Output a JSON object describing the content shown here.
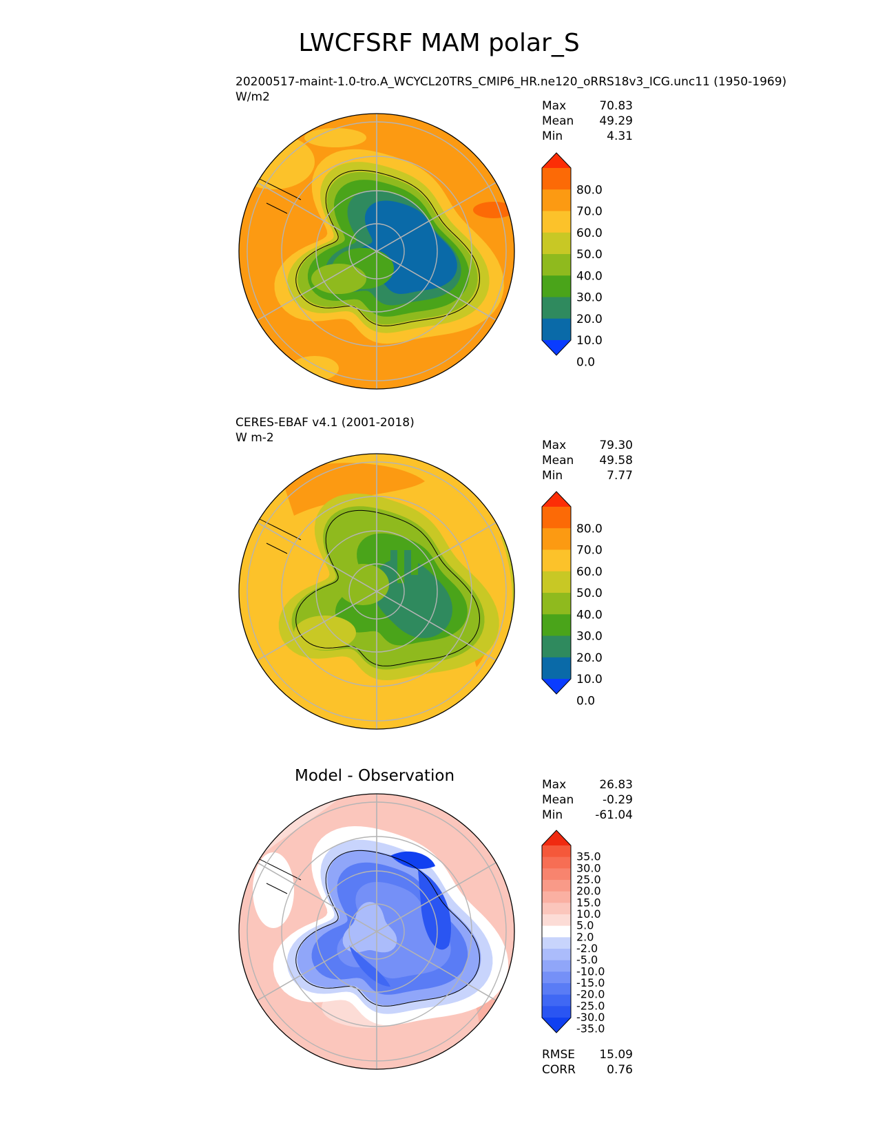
{
  "title": "LWCFSRF MAM polar_S",
  "panels": [
    {
      "id": "model",
      "subtitle_line1": "20200517-maint-1.0-tro.A_WCYCL20TRS_CMIP6_HR.ne120_oRRS18v3_ICG.unc11 (1950-1969)",
      "subtitle_line2": "W/m2",
      "stats": {
        "max_label": "Max",
        "max": "70.83",
        "mean_label": "Mean",
        "mean": "49.29",
        "min_label": "Min",
        "min": "4.31"
      }
    },
    {
      "id": "obs",
      "subtitle_line1": "CERES-EBAF v4.1 (2001-2018)",
      "subtitle_line2": "W m-2",
      "stats": {
        "max_label": "Max",
        "max": "79.30",
        "mean_label": "Mean",
        "mean": "49.58",
        "min_label": "Min",
        "min": "7.77"
      }
    },
    {
      "id": "diff",
      "heading": "Model - Observation",
      "stats": {
        "max_label": "Max",
        "max": "26.83",
        "mean_label": "Mean",
        "mean": "-0.29",
        "min_label": "Min",
        "min": "-61.04"
      },
      "extra": {
        "rmse_label": "RMSE",
        "rmse": "15.09",
        "corr_label": "CORR",
        "corr": "0.76"
      }
    }
  ],
  "chart_data": [
    {
      "type": "heatmap",
      "projection": "south-polar-stereographic",
      "title": "20200517-maint-1.0-tro.A_WCYCL20TRS_CMIP6_HR.ne120_oRRS18v3_ICG.unc11 (1950-1969)",
      "units": "W/m2",
      "colorbar_levels": [
        0.0,
        10.0,
        20.0,
        30.0,
        40.0,
        50.0,
        60.0,
        70.0,
        80.0
      ],
      "colorbar_labels": [
        "80.0",
        "70.0",
        "60.0",
        "50.0",
        "40.0",
        "30.0",
        "20.0",
        "10.0",
        "0.0"
      ],
      "colorbar_colors": [
        "#0a3cff",
        "#0a6aa8",
        "#2f8a5e",
        "#4aa41a",
        "#8fba1e",
        "#c8c825",
        "#fcc22a",
        "#fc9a12",
        "#fc6a06",
        "#fc2e06"
      ],
      "max": 70.83,
      "mean": 49.29,
      "min": 4.31,
      "regions": {
        "ocean": "60.0-70.0",
        "sea_ice_edge": "50.0-60.0",
        "coast": "30.0-50.0",
        "interior_plateau": "10.0-20.0"
      }
    },
    {
      "type": "heatmap",
      "projection": "south-polar-stereographic",
      "title": "CERES-EBAF v4.1 (2001-2018)",
      "units": "W m-2",
      "colorbar_levels": [
        0.0,
        10.0,
        20.0,
        30.0,
        40.0,
        50.0,
        60.0,
        70.0,
        80.0
      ],
      "colorbar_labels": [
        "80.0",
        "70.0",
        "60.0",
        "50.0",
        "40.0",
        "30.0",
        "20.0",
        "10.0",
        "0.0"
      ],
      "colorbar_colors": [
        "#0a3cff",
        "#0a6aa8",
        "#2f8a5e",
        "#4aa41a",
        "#8fba1e",
        "#c8c825",
        "#fcc22a",
        "#fc9a12",
        "#fc6a06",
        "#fc2e06"
      ],
      "max": 79.3,
      "mean": 49.58,
      "min": 7.77,
      "regions": {
        "ocean": "50.0-60.0",
        "storm_track_patches": "60.0-70.0",
        "coast": "40.0-50.0",
        "interior_plateau": "20.0-30.0"
      }
    },
    {
      "type": "heatmap",
      "projection": "south-polar-stereographic",
      "title": "Model - Observation",
      "colorbar_levels": [
        -35.0,
        -30.0,
        -25.0,
        -20.0,
        -15.0,
        -10.0,
        -5.0,
        -2.0,
        2.0,
        5.0,
        10.0,
        15.0,
        20.0,
        25.0,
        30.0,
        35.0
      ],
      "colorbar_labels": [
        "35.0",
        "30.0",
        "25.0",
        "20.0",
        "15.0",
        "10.0",
        "5.0",
        "2.0",
        "-2.0",
        "-5.0",
        "-10.0",
        "-15.0",
        "-20.0",
        "-25.0",
        "-30.0",
        "-35.0"
      ],
      "colorbar_colors": [
        "#1040f0",
        "#2a55f2",
        "#4068f4",
        "#5a7cf5",
        "#7590f7",
        "#90a6f9",
        "#abbcfb",
        "#c8d4fc",
        "#ffffff",
        "#fcdcd6",
        "#fbc6bc",
        "#fab0a2",
        "#f99a88",
        "#f8846e",
        "#f76e54",
        "#f5583a",
        "#f02a10"
      ],
      "max": 26.83,
      "mean": -0.29,
      "min": -61.04,
      "rmse": 15.09,
      "corr": 0.76,
      "regions": {
        "ocean": "5.0-15.0",
        "sea_ice_edge": "-2.0-2.0",
        "antarctica": "-35.0-(-10.0)"
      }
    }
  ]
}
